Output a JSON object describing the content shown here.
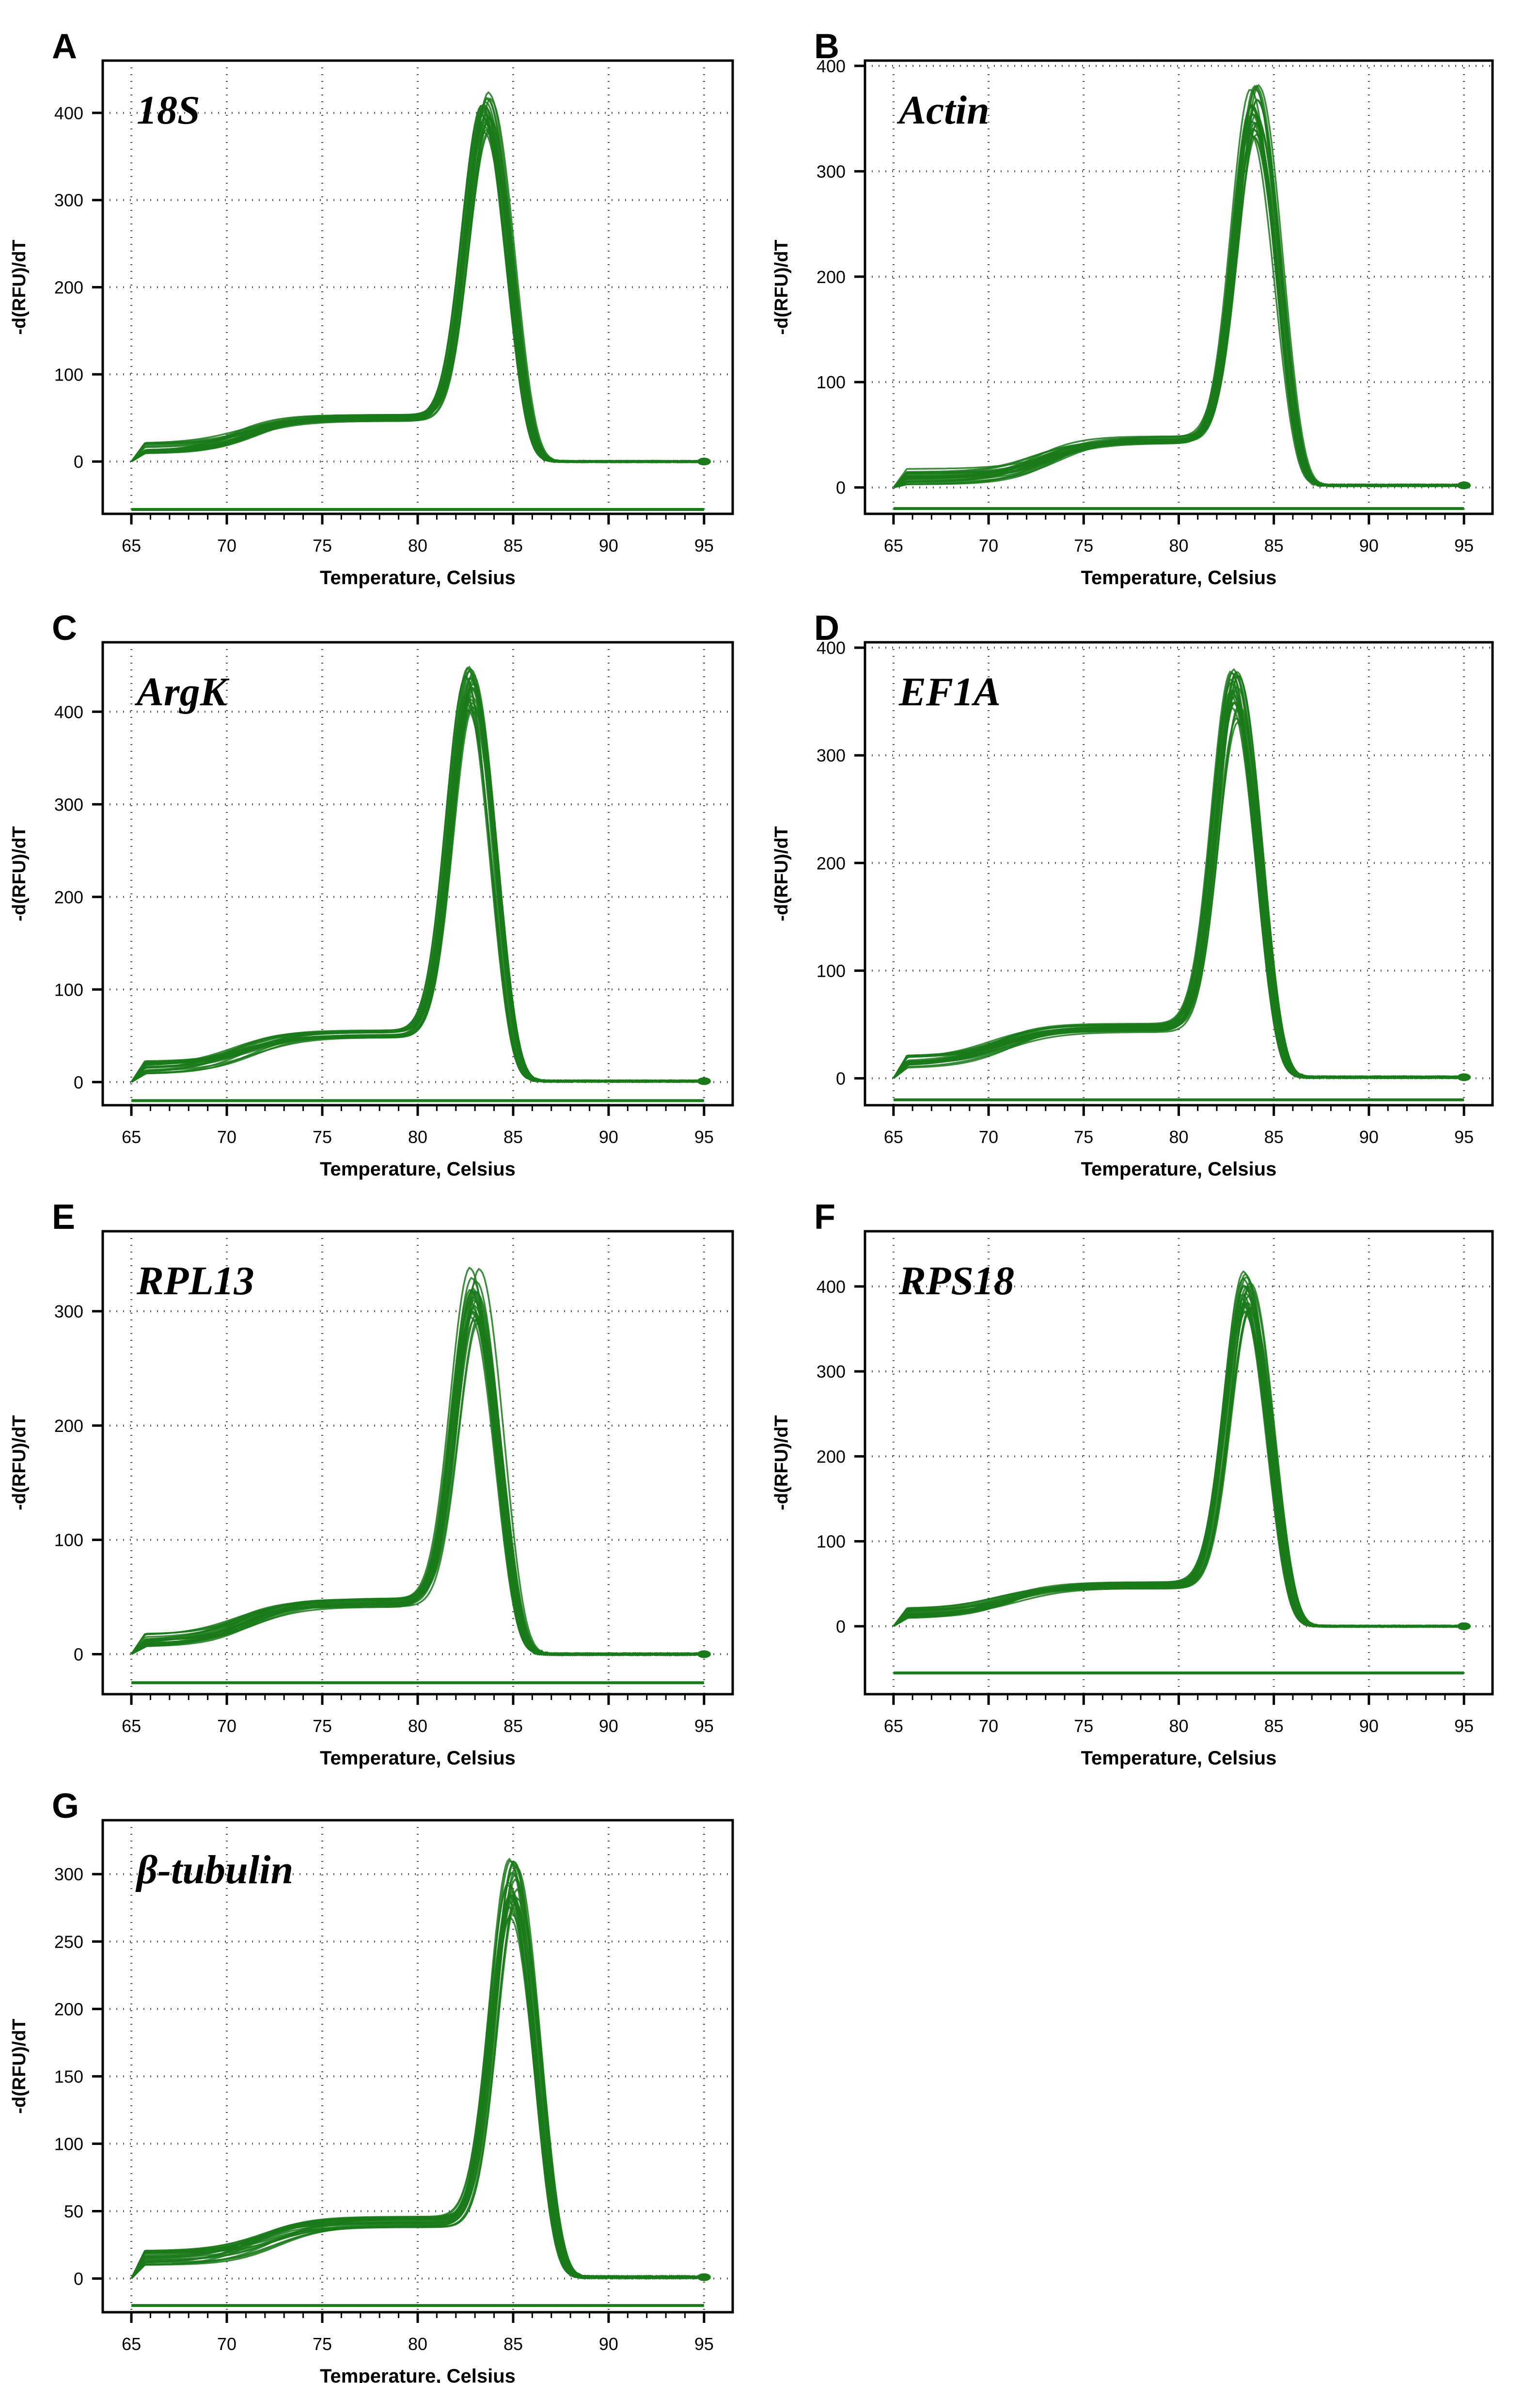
{
  "figure": {
    "line_color": "#1a7a1a",
    "frame_color": "#000000",
    "grid_color": "#555555"
  },
  "chart_data": [
    {
      "panel": "A",
      "gene": "18S",
      "type": "line",
      "xlabel": "Temperature, Celsius",
      "ylabel": "-d(RFU)/dT",
      "xlim": [
        63.5,
        96.5
      ],
      "ylim": [
        -60,
        460
      ],
      "xticks": [
        65,
        70,
        75,
        80,
        85,
        90,
        95
      ],
      "yticks": [
        0,
        100,
        200,
        300,
        400
      ],
      "baseline": -55,
      "n_curves": 24,
      "shape": {
        "start": 15,
        "shoulder_lo": 20,
        "shoulder_center": 71,
        "plateau": 50,
        "peak_center": 83.6,
        "peak": 400,
        "peak_spread": 25,
        "tail": 0,
        "start_jitter": 6
      }
    },
    {
      "panel": "B",
      "gene": "Actin",
      "type": "line",
      "xlabel": "Temperature, Celsius",
      "ylabel": "-d(RFU)/dT",
      "xlim": [
        63.5,
        96.5
      ],
      "ylim": [
        -25,
        405
      ],
      "xticks": [
        65,
        70,
        75,
        80,
        85,
        90,
        95
      ],
      "yticks": [
        0,
        100,
        200,
        300,
        400
      ],
      "baseline": -20,
      "n_curves": 24,
      "shape": {
        "start": 10,
        "shoulder_lo": 12,
        "shoulder_center": 73,
        "plateau": 45,
        "peak_center": 84,
        "peak": 355,
        "peak_spread": 28,
        "tail": 2,
        "start_jitter": 8
      }
    },
    {
      "panel": "C",
      "gene": "ArgK",
      "type": "line",
      "xlabel": "Temperature, Celsius",
      "ylabel": "-d(RFU)/dT",
      "xlim": [
        63.5,
        96.5
      ],
      "ylim": [
        -25,
        475
      ],
      "xticks": [
        65,
        70,
        75,
        80,
        85,
        90,
        95
      ],
      "yticks": [
        0,
        100,
        200,
        300,
        400
      ],
      "baseline": -20,
      "n_curves": 24,
      "shape": {
        "start": 15,
        "shoulder_lo": 22,
        "shoulder_center": 71,
        "plateau": 52,
        "peak_center": 82.7,
        "peak": 425,
        "peak_spread": 25,
        "tail": 1,
        "start_jitter": 8
      }
    },
    {
      "panel": "D",
      "gene": "EF1A",
      "type": "line",
      "xlabel": "Temperature, Celsius",
      "ylabel": "-d(RFU)/dT",
      "xlim": [
        63.5,
        96.5
      ],
      "ylim": [
        -25,
        405
      ],
      "xticks": [
        65,
        70,
        75,
        80,
        85,
        90,
        95
      ],
      "yticks": [
        0,
        100,
        200,
        300,
        400
      ],
      "baseline": -20,
      "n_curves": 24,
      "shape": {
        "start": 15,
        "shoulder_lo": 20,
        "shoulder_center": 70.5,
        "plateau": 47,
        "peak_center": 83,
        "peak": 355,
        "peak_spread": 25,
        "tail": 1,
        "start_jitter": 6
      }
    },
    {
      "panel": "E",
      "gene": "RPL13",
      "type": "line",
      "xlabel": "Temperature, Celsius",
      "ylabel": "-d(RFU)/dT",
      "xlim": [
        63.5,
        96.5
      ],
      "ylim": [
        -35,
        370
      ],
      "xticks": [
        65,
        70,
        75,
        80,
        85,
        90,
        95
      ],
      "yticks": [
        0,
        100,
        200,
        300
      ],
      "baseline": -25,
      "n_curves": 24,
      "shape": {
        "start": 12,
        "shoulder_lo": 16,
        "shoulder_center": 71,
        "plateau": 45,
        "peak_center": 83,
        "peak": 315,
        "peak_spread": 25,
        "tail": 0,
        "start_jitter": 6
      }
    },
    {
      "panel": "F",
      "gene": "RPS18",
      "type": "line",
      "xlabel": "Temperature, Celsius",
      "ylabel": "-d(RFU)/dT",
      "xlim": [
        63.5,
        96.5
      ],
      "ylim": [
        -80,
        465
      ],
      "xticks": [
        65,
        70,
        75,
        80,
        85,
        90,
        95
      ],
      "yticks": [
        0,
        100,
        200,
        300,
        400
      ],
      "baseline": -55,
      "n_curves": 24,
      "shape": {
        "start": 15,
        "shoulder_lo": 18,
        "shoulder_center": 71,
        "plateau": 48,
        "peak_center": 83.6,
        "peak": 395,
        "peak_spread": 25,
        "tail": 0,
        "start_jitter": 6
      }
    },
    {
      "panel": "G",
      "gene": "β-tubulin",
      "type": "line",
      "xlabel": "Temperature, Celsius",
      "ylabel": "-d(RFU)/dT",
      "xlim": [
        63.5,
        96.5
      ],
      "ylim": [
        -25,
        340
      ],
      "xticks": [
        65,
        70,
        75,
        80,
        85,
        90,
        95
      ],
      "yticks": [
        0,
        50,
        100,
        150,
        200,
        250,
        300
      ],
      "baseline": -20,
      "n_curves": 24,
      "shape": {
        "start": 15,
        "shoulder_lo": 15,
        "shoulder_center": 72,
        "plateau": 42,
        "peak_center": 85,
        "peak": 290,
        "peak_spread": 22,
        "tail": 1,
        "start_jitter": 6
      }
    }
  ]
}
